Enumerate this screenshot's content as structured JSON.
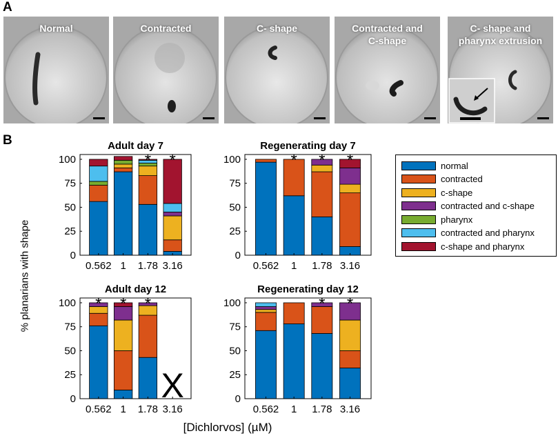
{
  "panel_a": {
    "letter": "A",
    "photos": [
      {
        "label": "Normal"
      },
      {
        "label": "Contracted"
      },
      {
        "label": "C- shape"
      },
      {
        "label": "Contracted and\nC-shape"
      },
      {
        "label": "C- shape and\npharynx extrusion"
      }
    ]
  },
  "panel_b": {
    "letter": "B",
    "ylabel": "% planarians with shape",
    "xlabel": "[Dichlorvos] (µM)"
  },
  "colors": {
    "normal": "#0072BD",
    "contracted": "#D95319",
    "c-shape": "#EDB120",
    "contracted and c-shape": "#7E2F8E",
    "pharynx": "#77AC30",
    "contracted and pharynx": "#4DBEEE",
    "c-shape and pharynx": "#A2142F"
  },
  "legend": {
    "entries": [
      "normal",
      "contracted",
      "c-shape",
      "contracted and c-shape",
      "pharynx",
      "contracted and pharynx",
      "c-shape and pharynx"
    ]
  },
  "chart_data": [
    {
      "type": "bar",
      "stacked": true,
      "title": "Adult day 7",
      "categories": [
        "0.562",
        "1",
        "1.78",
        "3.16"
      ],
      "ylim": [
        0,
        105
      ],
      "yticks": [
        0,
        25,
        50,
        75,
        100
      ],
      "significant": [
        false,
        false,
        true,
        true
      ],
      "missing": [
        false,
        false,
        false,
        false
      ],
      "series": [
        {
          "name": "normal",
          "values": [
            56,
            87,
            53,
            4
          ]
        },
        {
          "name": "contracted",
          "values": [
            17,
            4,
            30,
            12
          ]
        },
        {
          "name": "c-shape",
          "values": [
            0,
            4,
            10,
            25
          ]
        },
        {
          "name": "contracted and c-shape",
          "values": [
            0,
            0,
            0,
            4
          ]
        },
        {
          "name": "pharynx",
          "values": [
            4,
            4,
            3,
            0
          ]
        },
        {
          "name": "contracted and pharynx",
          "values": [
            16,
            0,
            3,
            9
          ]
        },
        {
          "name": "c-shape and pharynx",
          "values": [
            7,
            4,
            1,
            46
          ]
        }
      ]
    },
    {
      "type": "bar",
      "stacked": true,
      "title": "Regenerating day 7",
      "categories": [
        "0.562",
        "1",
        "1.78",
        "3.16"
      ],
      "ylim": [
        0,
        105
      ],
      "yticks": [
        0,
        25,
        50,
        75,
        100
      ],
      "significant": [
        false,
        true,
        true,
        true
      ],
      "missing": [
        false,
        false,
        false,
        false
      ],
      "series": [
        {
          "name": "normal",
          "values": [
            97,
            62,
            40,
            9
          ]
        },
        {
          "name": "contracted",
          "values": [
            3,
            38,
            47,
            56
          ]
        },
        {
          "name": "c-shape",
          "values": [
            0,
            0,
            7,
            9
          ]
        },
        {
          "name": "contracted and c-shape",
          "values": [
            0,
            0,
            6,
            17
          ]
        },
        {
          "name": "pharynx",
          "values": [
            0,
            0,
            0,
            0
          ]
        },
        {
          "name": "contracted and pharynx",
          "values": [
            0,
            0,
            0,
            0
          ]
        },
        {
          "name": "c-shape and pharynx",
          "values": [
            0,
            0,
            0,
            9
          ]
        }
      ]
    },
    {
      "type": "bar",
      "stacked": true,
      "title": "Adult day 12",
      "categories": [
        "0.562",
        "1",
        "1.78",
        "3.16"
      ],
      "ylim": [
        0,
        105
      ],
      "yticks": [
        0,
        25,
        50,
        75,
        100
      ],
      "significant": [
        true,
        true,
        true,
        false
      ],
      "missing": [
        false,
        false,
        false,
        true
      ],
      "missing_marker": "X",
      "series": [
        {
          "name": "normal",
          "values": [
            76,
            9,
            43,
            0
          ]
        },
        {
          "name": "contracted",
          "values": [
            13,
            41,
            44,
            0
          ]
        },
        {
          "name": "c-shape",
          "values": [
            7,
            32,
            10,
            0
          ]
        },
        {
          "name": "contracted and c-shape",
          "values": [
            4,
            14,
            3,
            0
          ]
        },
        {
          "name": "pharynx",
          "values": [
            0,
            0,
            0,
            0
          ]
        },
        {
          "name": "contracted and pharynx",
          "values": [
            0,
            0,
            0,
            0
          ]
        },
        {
          "name": "c-shape and pharynx",
          "values": [
            0,
            4,
            0,
            0
          ]
        }
      ]
    },
    {
      "type": "bar",
      "stacked": true,
      "title": "Regenerating day 12",
      "categories": [
        "0.562",
        "1",
        "1.78",
        "3.16"
      ],
      "ylim": [
        0,
        105
      ],
      "yticks": [
        0,
        25,
        50,
        75,
        100
      ],
      "significant": [
        false,
        false,
        true,
        true
      ],
      "missing": [
        false,
        false,
        false,
        false
      ],
      "series": [
        {
          "name": "normal",
          "values": [
            71,
            78,
            68,
            32
          ]
        },
        {
          "name": "contracted",
          "values": [
            19,
            22,
            28,
            18
          ]
        },
        {
          "name": "c-shape",
          "values": [
            3,
            0,
            0,
            32
          ]
        },
        {
          "name": "contracted and c-shape",
          "values": [
            3,
            0,
            4,
            18
          ]
        },
        {
          "name": "pharynx",
          "values": [
            0,
            0,
            0,
            0
          ]
        },
        {
          "name": "contracted and pharynx",
          "values": [
            4,
            0,
            0,
            0
          ]
        },
        {
          "name": "c-shape and pharynx",
          "values": [
            0,
            0,
            0,
            0
          ]
        }
      ]
    }
  ]
}
